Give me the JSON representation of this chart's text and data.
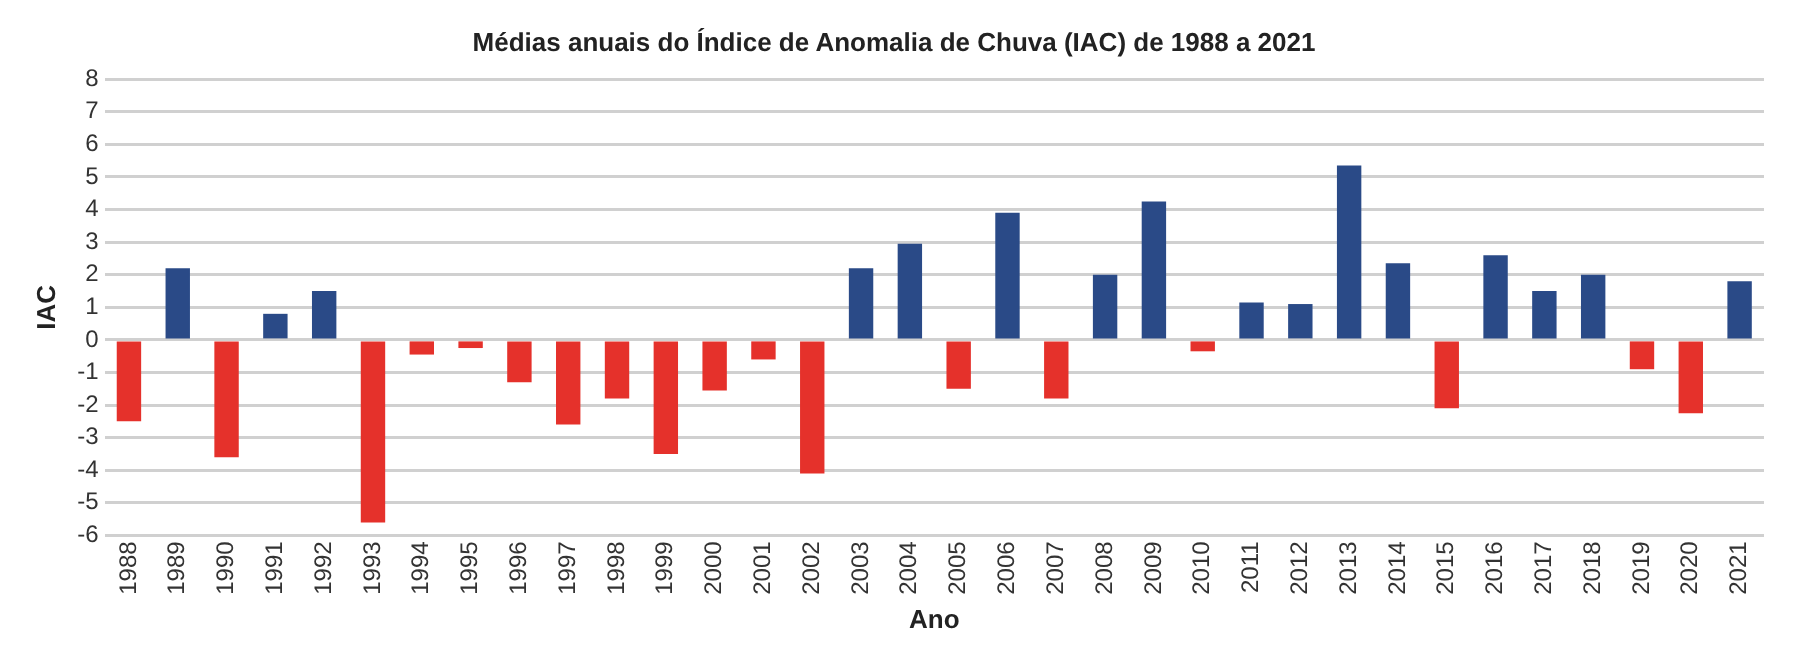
{
  "chart_data": {
    "type": "bar",
    "title": "Médias anuais do Índice de Anomalia de Chuva (IAC) de 1988 a 2021",
    "xlabel": "Ano",
    "ylabel": "IAC",
    "categories": [
      "1988",
      "1989",
      "1990",
      "1991",
      "1992",
      "1993",
      "1994",
      "1995",
      "1996",
      "1997",
      "1998",
      "1999",
      "2000",
      "2001",
      "2002",
      "2003",
      "2004",
      "2005",
      "2006",
      "2007",
      "2008",
      "2009",
      "2010",
      "2011",
      "2012",
      "2013",
      "2014",
      "2015",
      "2016",
      "2017",
      "2018",
      "2019",
      "2020",
      "2021"
    ],
    "values": [
      -2.5,
      2.2,
      -3.6,
      0.8,
      1.5,
      -5.6,
      -0.45,
      -0.25,
      -1.3,
      -2.6,
      -1.8,
      -3.5,
      -1.55,
      -0.6,
      -4.1,
      2.2,
      2.95,
      -1.5,
      3.9,
      -1.8,
      2.0,
      4.25,
      -0.35,
      1.15,
      1.1,
      5.35,
      2.35,
      -2.1,
      2.6,
      1.5,
      2.0,
      -0.9,
      -2.25,
      1.8
    ],
    "colors": [
      "#e5312b",
      "#2a4a87",
      "#e5312b",
      "#2a4a87",
      "#2a4a87",
      "#e5312b",
      "#e5312b",
      "#e5312b",
      "#e5312b",
      "#e5312b",
      "#e5312b",
      "#e5312b",
      "#e5312b",
      "#e5312b",
      "#e5312b",
      "#2a4a87",
      "#2a4a87",
      "#e5312b",
      "#2a4a87",
      "#e5312b",
      "#2a4a87",
      "#2a4a87",
      "#e5312b",
      "#2a4a87",
      "#2a4a87",
      "#2a4a87",
      "#2a4a87",
      "#e5312b",
      "#2a4a87",
      "#2a4a87",
      "#2a4a87",
      "#e5312b",
      "#e5312b",
      "#2a4a87"
    ],
    "ylim": [
      -6,
      8
    ],
    "yticks": [
      -6,
      -5,
      -4,
      -3,
      -2,
      -1,
      0,
      1,
      2,
      3,
      4,
      5,
      6,
      7,
      8
    ],
    "grid": "y",
    "legend": false
  }
}
